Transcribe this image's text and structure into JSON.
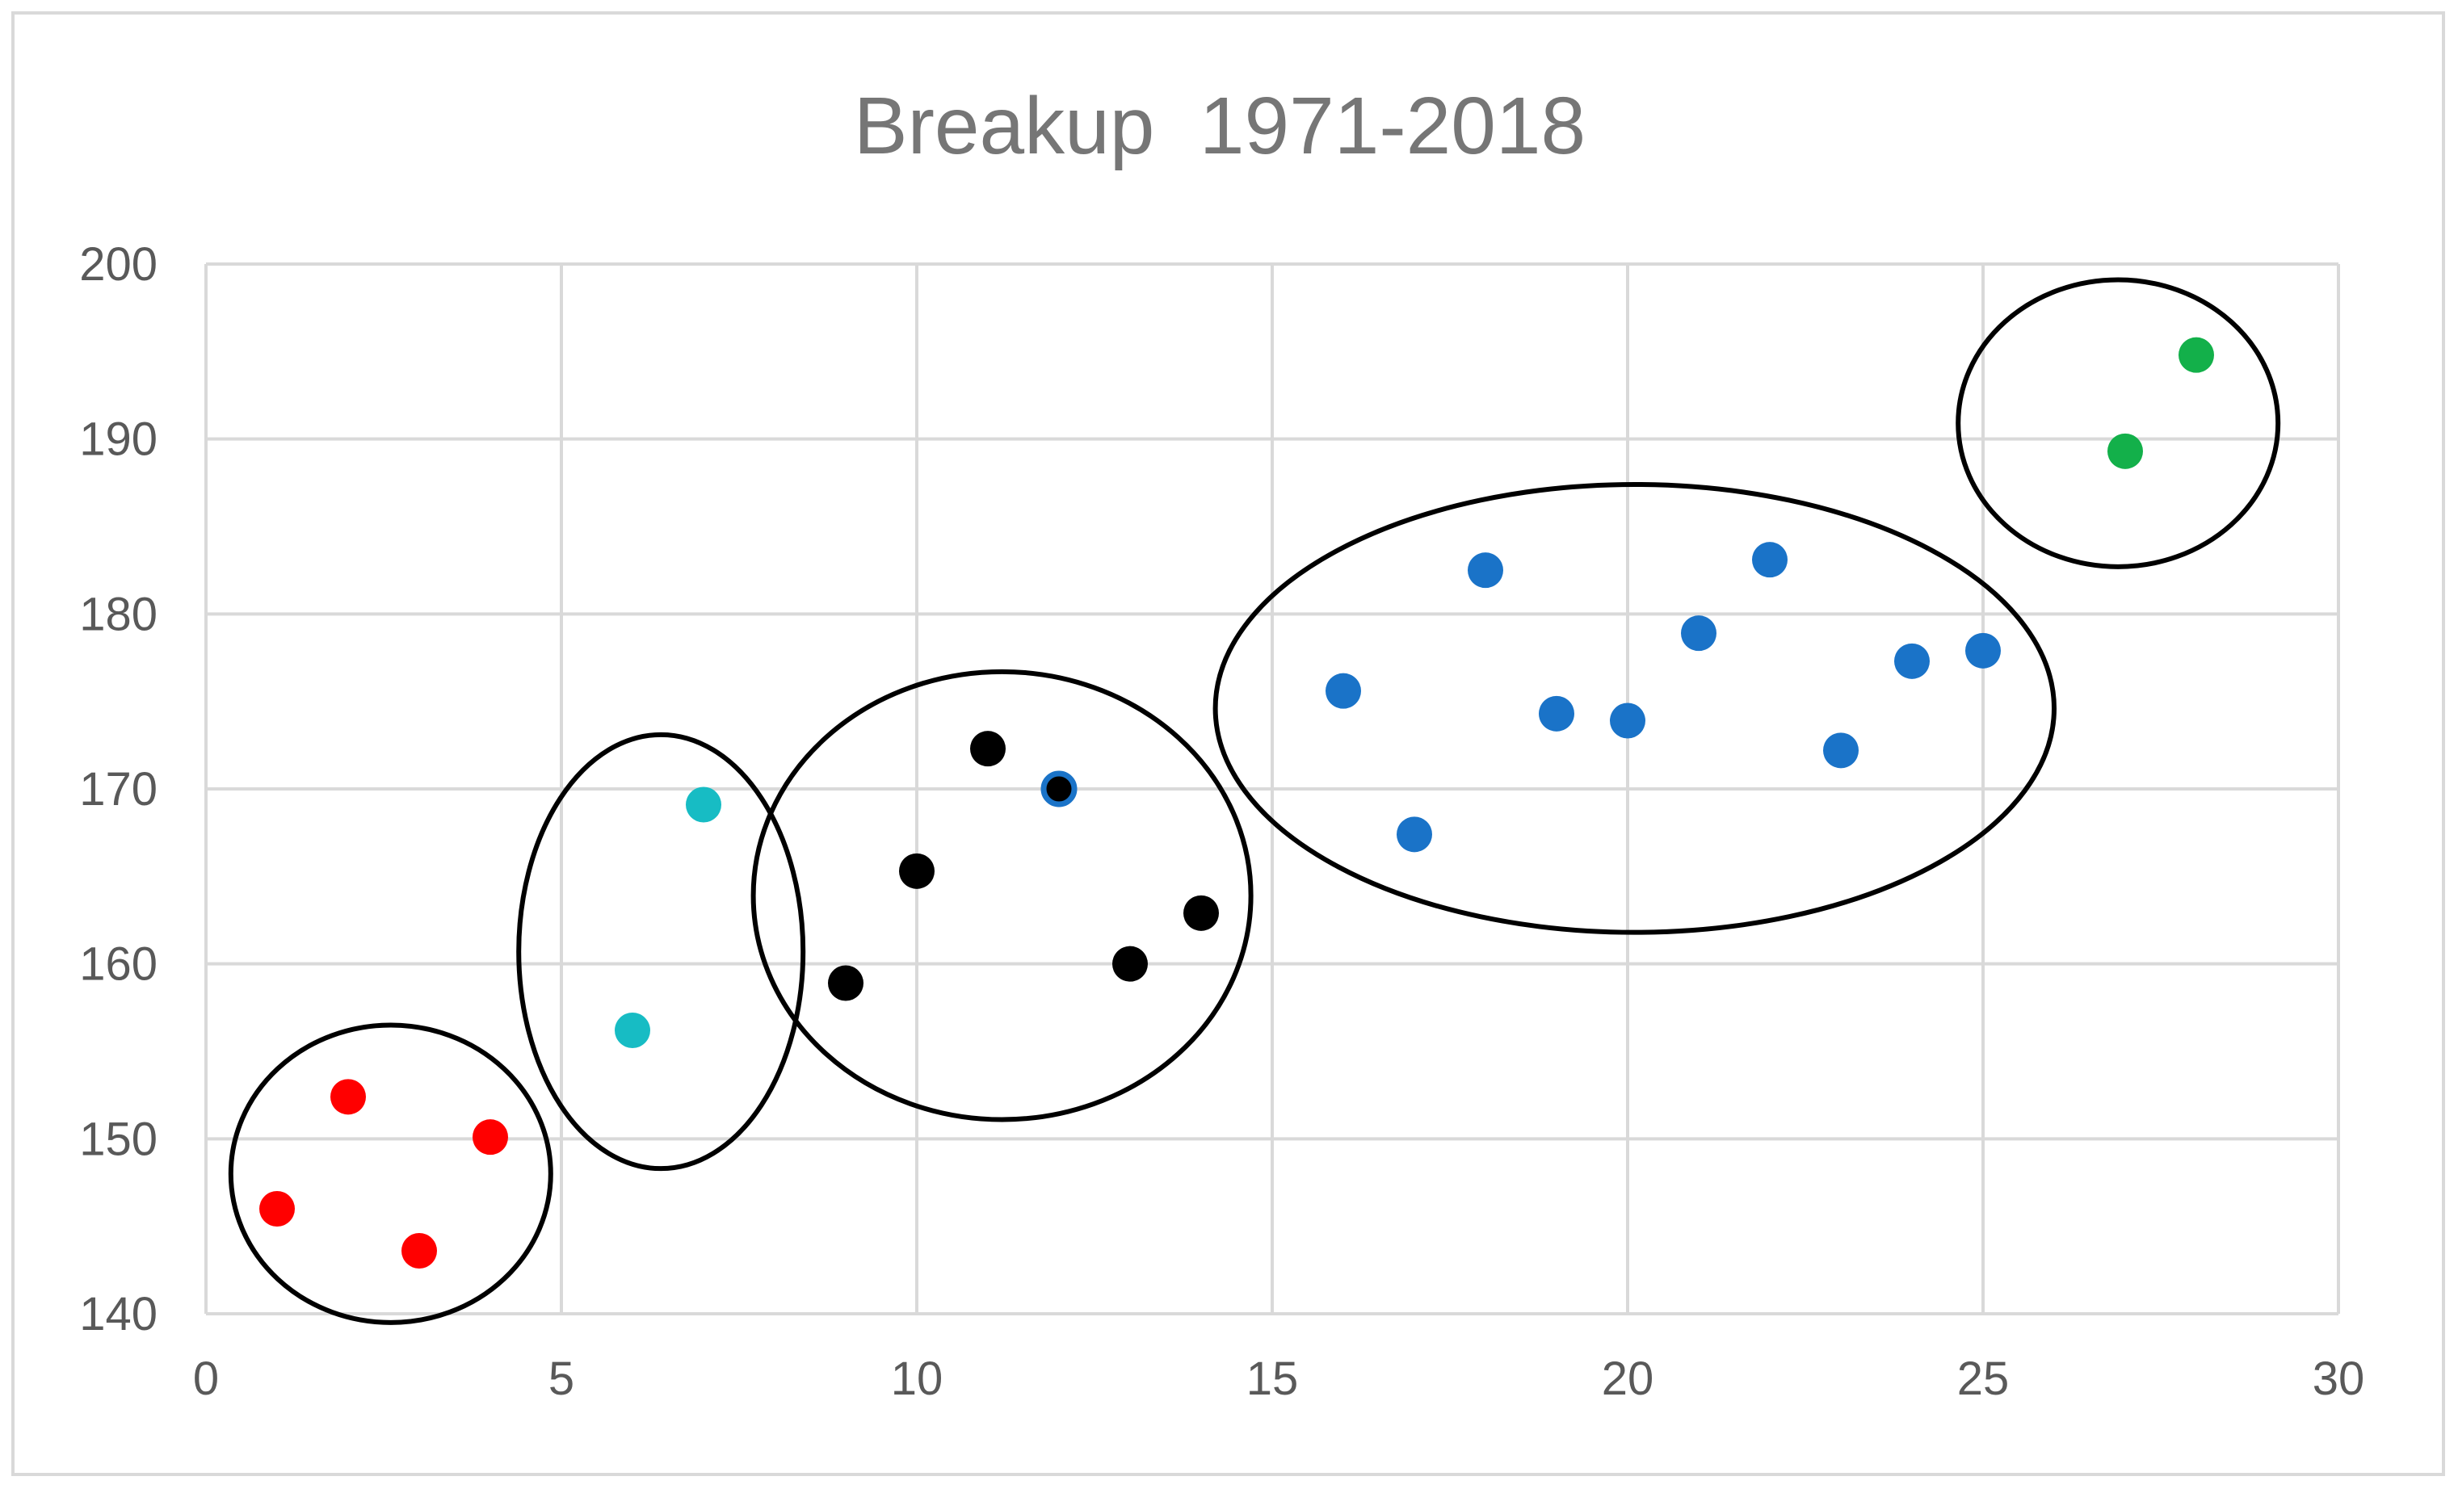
{
  "chart_data": {
    "type": "scatter",
    "title": "Breakup  1971-2018",
    "xlabel": "",
    "ylabel": "",
    "xlim": [
      0,
      30
    ],
    "ylim": [
      140,
      200
    ],
    "x_ticks": [
      0,
      5,
      10,
      15,
      20,
      25,
      30
    ],
    "y_ticks": [
      140,
      150,
      160,
      170,
      180,
      190,
      200
    ],
    "x_tick_labels": [
      "0",
      "5",
      "10",
      "15",
      "20",
      "25",
      "30"
    ],
    "y_tick_labels": [
      "140",
      "150",
      "160",
      "170",
      "180",
      "190",
      "200"
    ],
    "grid": true,
    "legend": "none",
    "colors": {
      "red": "#ff0000",
      "teal": "#17bcc4",
      "black": "#000000",
      "blue": "#1a73c8",
      "green": "#13b04a",
      "grid": "#d9d9d9",
      "ellipse": "#000000"
    },
    "series": [
      {
        "color": "#ff0000",
        "points": [
          [
            1,
            146
          ],
          [
            2,
            152.4
          ],
          [
            3,
            143.6
          ],
          [
            4,
            150.1
          ]
        ]
      },
      {
        "color": "#17bcc4",
        "points": [
          [
            6,
            156.2
          ],
          [
            7,
            169.1
          ]
        ]
      },
      {
        "color": "#000000",
        "points": [
          [
            9,
            158.9
          ],
          [
            10,
            165.3
          ],
          [
            11,
            172.3
          ],
          [
            12,
            170
          ],
          [
            13,
            160
          ],
          [
            14,
            162.9
          ]
        ]
      },
      {
        "color": "#1a73c8",
        "points": [
          [
            16,
            175.6
          ],
          [
            17,
            167.4
          ],
          [
            18,
            182.5
          ],
          [
            19,
            174.3
          ],
          [
            20,
            173.9
          ],
          [
            21,
            178.9
          ],
          [
            22,
            183.1
          ],
          [
            23,
            172.2
          ],
          [
            24,
            177.3
          ],
          [
            25,
            177.9
          ]
        ]
      },
      {
        "color": "#13b04a",
        "points": [
          [
            27,
            189.3
          ],
          [
            28,
            194.8
          ]
        ]
      }
    ],
    "cluster_ellipses": [
      {
        "cx": 2.6,
        "cy": 148,
        "rx": 2.25,
        "ry": 8.5
      },
      {
        "cx": 6.4,
        "cy": 160.7,
        "rx": 2.0,
        "ry": 12.4
      },
      {
        "cx": 11.2,
        "cy": 163.9,
        "rx": 3.5,
        "ry": 12.8
      },
      {
        "cx": 20.1,
        "cy": 174.6,
        "rx": 5.9,
        "ry": 12.8
      },
      {
        "cx": 26.9,
        "cy": 190.9,
        "rx": 2.25,
        "ry": 8.2
      }
    ]
  }
}
